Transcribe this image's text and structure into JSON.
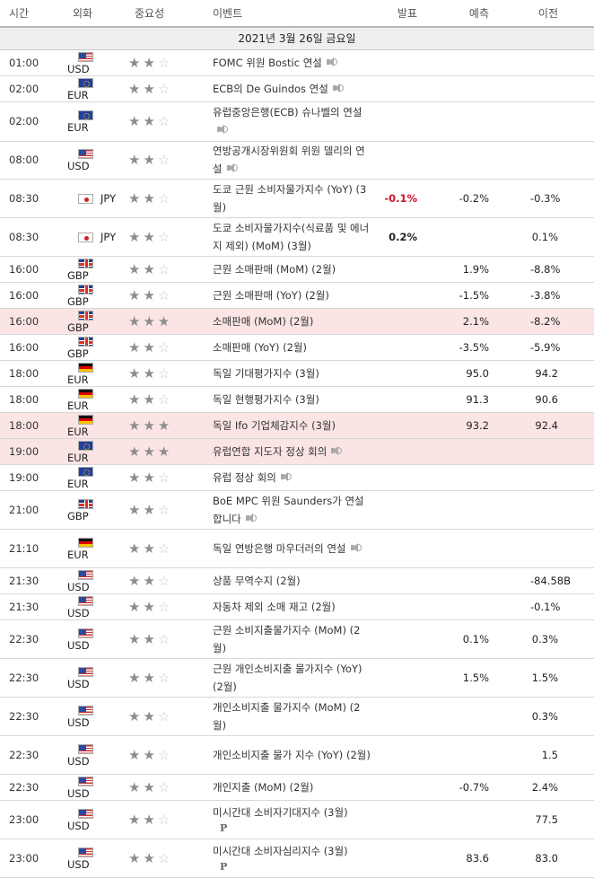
{
  "headers": {
    "time": "시간",
    "currency": "외화",
    "importance": "중요성",
    "event": "이벤트",
    "actual": "발표",
    "forecast": "예측",
    "previous": "이전"
  },
  "date_label": "2021년 3월 26일 금요일",
  "rows": [
    {
      "time": "01:00",
      "flag": "us",
      "currency": "USD",
      "stars": 2,
      "event": "FOMC 위원 Bostic 연설",
      "sound": true,
      "p": false,
      "actual": "",
      "actual_neg": false,
      "forecast": "",
      "previous": "",
      "highlight": false,
      "h": 26
    },
    {
      "time": "02:00",
      "flag": "eu",
      "currency": "EUR",
      "stars": 2,
      "event": "ECB의 De Guindos 연설",
      "sound": true,
      "p": false,
      "actual": "",
      "actual_neg": false,
      "forecast": "",
      "previous": "",
      "highlight": false,
      "h": 26
    },
    {
      "time": "02:00",
      "flag": "eu",
      "currency": "EUR",
      "stars": 2,
      "event": "유럽중앙은행(ECB) 슈나벨의 연설",
      "sound": true,
      "p": false,
      "actual": "",
      "actual_neg": false,
      "forecast": "",
      "previous": "",
      "highlight": false,
      "h": 44
    },
    {
      "time": "08:00",
      "flag": "us",
      "currency": "USD",
      "stars": 2,
      "event": "연방공개시장위원회 위원 델리의 연설",
      "sound": true,
      "p": false,
      "actual": "",
      "actual_neg": false,
      "forecast": "",
      "previous": "",
      "highlight": false,
      "h": 42
    },
    {
      "time": "08:30",
      "flag": "jp",
      "currency": "JPY",
      "stars": 2,
      "event": "도쿄 근원 소비자물가지수 (YoY) (3월)",
      "sound": false,
      "p": false,
      "actual": "-0.1%",
      "actual_neg": true,
      "forecast": "-0.2%",
      "previous": "-0.3%",
      "highlight": false,
      "h": 43
    },
    {
      "time": "08:30",
      "flag": "jp",
      "currency": "JPY",
      "stars": 2,
      "event": "도쿄 소비자물가지수(식료품 및 에너지 제외) (MoM) (3월)",
      "sound": false,
      "p": false,
      "actual": "0.2%",
      "actual_neg": false,
      "forecast": "",
      "previous": "0.1%",
      "highlight": false,
      "h": 43
    },
    {
      "time": "16:00",
      "flag": "gb",
      "currency": "GBP",
      "stars": 2,
      "event": "근원 소매판매 (MoM) (2월)",
      "sound": false,
      "p": false,
      "actual": "",
      "actual_neg": false,
      "forecast": "1.9%",
      "previous": "-8.8%",
      "highlight": false,
      "h": 26
    },
    {
      "time": "16:00",
      "flag": "gb",
      "currency": "GBP",
      "stars": 2,
      "event": "근원 소매판매 (YoY) (2월)",
      "sound": false,
      "p": false,
      "actual": "",
      "actual_neg": false,
      "forecast": "-1.5%",
      "previous": "-3.8%",
      "highlight": false,
      "h": 26
    },
    {
      "time": "16:00",
      "flag": "gb",
      "currency": "GBP",
      "stars": 3,
      "event": "소매판매 (MoM) (2월)",
      "sound": false,
      "p": false,
      "actual": "",
      "actual_neg": false,
      "forecast": "2.1%",
      "previous": "-8.2%",
      "highlight": true,
      "h": 26
    },
    {
      "time": "16:00",
      "flag": "gb",
      "currency": "GBP",
      "stars": 2,
      "event": "소매판매 (YoY) (2월)",
      "sound": false,
      "p": false,
      "actual": "",
      "actual_neg": false,
      "forecast": "-3.5%",
      "previous": "-5.9%",
      "highlight": false,
      "h": 26
    },
    {
      "time": "18:00",
      "flag": "de",
      "currency": "EUR",
      "stars": 2,
      "event": "독일 기대평가지수 (3월)",
      "sound": false,
      "p": false,
      "actual": "",
      "actual_neg": false,
      "forecast": "95.0",
      "previous": "94.2",
      "highlight": false,
      "h": 26
    },
    {
      "time": "18:00",
      "flag": "de",
      "currency": "EUR",
      "stars": 2,
      "event": "독일 현행평가지수 (3월)",
      "sound": false,
      "p": false,
      "actual": "",
      "actual_neg": false,
      "forecast": "91.3",
      "previous": "90.6",
      "highlight": false,
      "h": 26
    },
    {
      "time": "18:00",
      "flag": "de",
      "currency": "EUR",
      "stars": 3,
      "event": "독일 Ifo 기업체감지수 (3월)",
      "sound": false,
      "p": false,
      "actual": "",
      "actual_neg": false,
      "forecast": "93.2",
      "previous": "92.4",
      "highlight": true,
      "h": 26
    },
    {
      "time": "19:00",
      "flag": "eu",
      "currency": "EUR",
      "stars": 3,
      "event": "유럽연합 지도자 정상 회의",
      "sound": true,
      "p": false,
      "actual": "",
      "actual_neg": false,
      "forecast": "",
      "previous": "",
      "highlight": true,
      "h": 26
    },
    {
      "time": "19:00",
      "flag": "eu",
      "currency": "EUR",
      "stars": 2,
      "event": "유럽 정상 회의",
      "sound": true,
      "p": false,
      "actual": "",
      "actual_neg": false,
      "forecast": "",
      "previous": "",
      "highlight": false,
      "h": 26
    },
    {
      "time": "21:00",
      "flag": "gb",
      "currency": "GBP",
      "stars": 2,
      "event": "BoE MPC 위원 Saunders가 연설합니다",
      "sound": true,
      "p": false,
      "actual": "",
      "actual_neg": false,
      "forecast": "",
      "previous": "",
      "highlight": false,
      "h": 43
    },
    {
      "time": "21:10",
      "flag": "de",
      "currency": "EUR",
      "stars": 2,
      "event": "독일 연방은행 마우더러의 연설",
      "sound": true,
      "p": false,
      "actual": "",
      "actual_neg": false,
      "forecast": "",
      "previous": "",
      "highlight": false,
      "h": 43
    },
    {
      "time": "21:30",
      "flag": "us",
      "currency": "USD",
      "stars": 2,
      "event": "상품 무역수지 (2월)",
      "sound": false,
      "p": false,
      "actual": "",
      "actual_neg": false,
      "forecast": "",
      "previous": "-84.58B",
      "highlight": false,
      "h": 26
    },
    {
      "time": "21:30",
      "flag": "us",
      "currency": "USD",
      "stars": 2,
      "event": "자동차 제외 소매 재고 (2월)",
      "sound": false,
      "p": false,
      "actual": "",
      "actual_neg": false,
      "forecast": "",
      "previous": "-0.1%",
      "highlight": false,
      "h": 26
    },
    {
      "time": "22:30",
      "flag": "us",
      "currency": "USD",
      "stars": 2,
      "event": "근원 소비지출물가지수 (MoM) (2월)",
      "sound": false,
      "p": false,
      "actual": "",
      "actual_neg": false,
      "forecast": "0.1%",
      "previous": "0.3%",
      "highlight": false,
      "h": 43
    },
    {
      "time": "22:30",
      "flag": "us",
      "currency": "USD",
      "stars": 2,
      "event": "근원 개인소비지출 물가지수 (YoY) (2월)",
      "sound": false,
      "p": false,
      "actual": "",
      "actual_neg": false,
      "forecast": "1.5%",
      "previous": "1.5%",
      "highlight": false,
      "h": 43
    },
    {
      "time": "22:30",
      "flag": "us",
      "currency": "USD",
      "stars": 2,
      "event": "개인소비지출 물가지수 (MoM) (2월)",
      "sound": false,
      "p": false,
      "actual": "",
      "actual_neg": false,
      "forecast": "",
      "previous": "0.3%",
      "highlight": false,
      "h": 43
    },
    {
      "time": "22:30",
      "flag": "us",
      "currency": "USD",
      "stars": 2,
      "event": "개인소비지출 물가 지수 (YoY) (2월)",
      "sound": false,
      "p": false,
      "actual": "",
      "actual_neg": false,
      "forecast": "",
      "previous": "1.5",
      "highlight": false,
      "h": 43
    },
    {
      "time": "22:30",
      "flag": "us",
      "currency": "USD",
      "stars": 2,
      "event": "개인지출 (MoM) (2월)",
      "sound": false,
      "p": false,
      "actual": "",
      "actual_neg": false,
      "forecast": "-0.7%",
      "previous": "2.4%",
      "highlight": false,
      "h": 26
    },
    {
      "time": "23:00",
      "flag": "us",
      "currency": "USD",
      "stars": 2,
      "event": "미시간대 소비자기대지수 (3월)",
      "sound": false,
      "p": true,
      "actual": "",
      "actual_neg": false,
      "forecast": "",
      "previous": "77.5",
      "highlight": false,
      "h": 43
    },
    {
      "time": "23:00",
      "flag": "us",
      "currency": "USD",
      "stars": 2,
      "event": "미시간대 소비자심리지수 (3월)",
      "sound": false,
      "p": true,
      "actual": "",
      "actual_neg": false,
      "forecast": "83.6",
      "previous": "83.0",
      "highlight": false,
      "h": 43
    }
  ],
  "icons": {
    "sound": "speaker-icon",
    "preliminary": "p-mark-icon"
  },
  "p_mark": "P",
  "colors": {
    "highlight": "#fbe4e4",
    "negative": "#d0102a",
    "header_border": "#b8b8b8"
  }
}
